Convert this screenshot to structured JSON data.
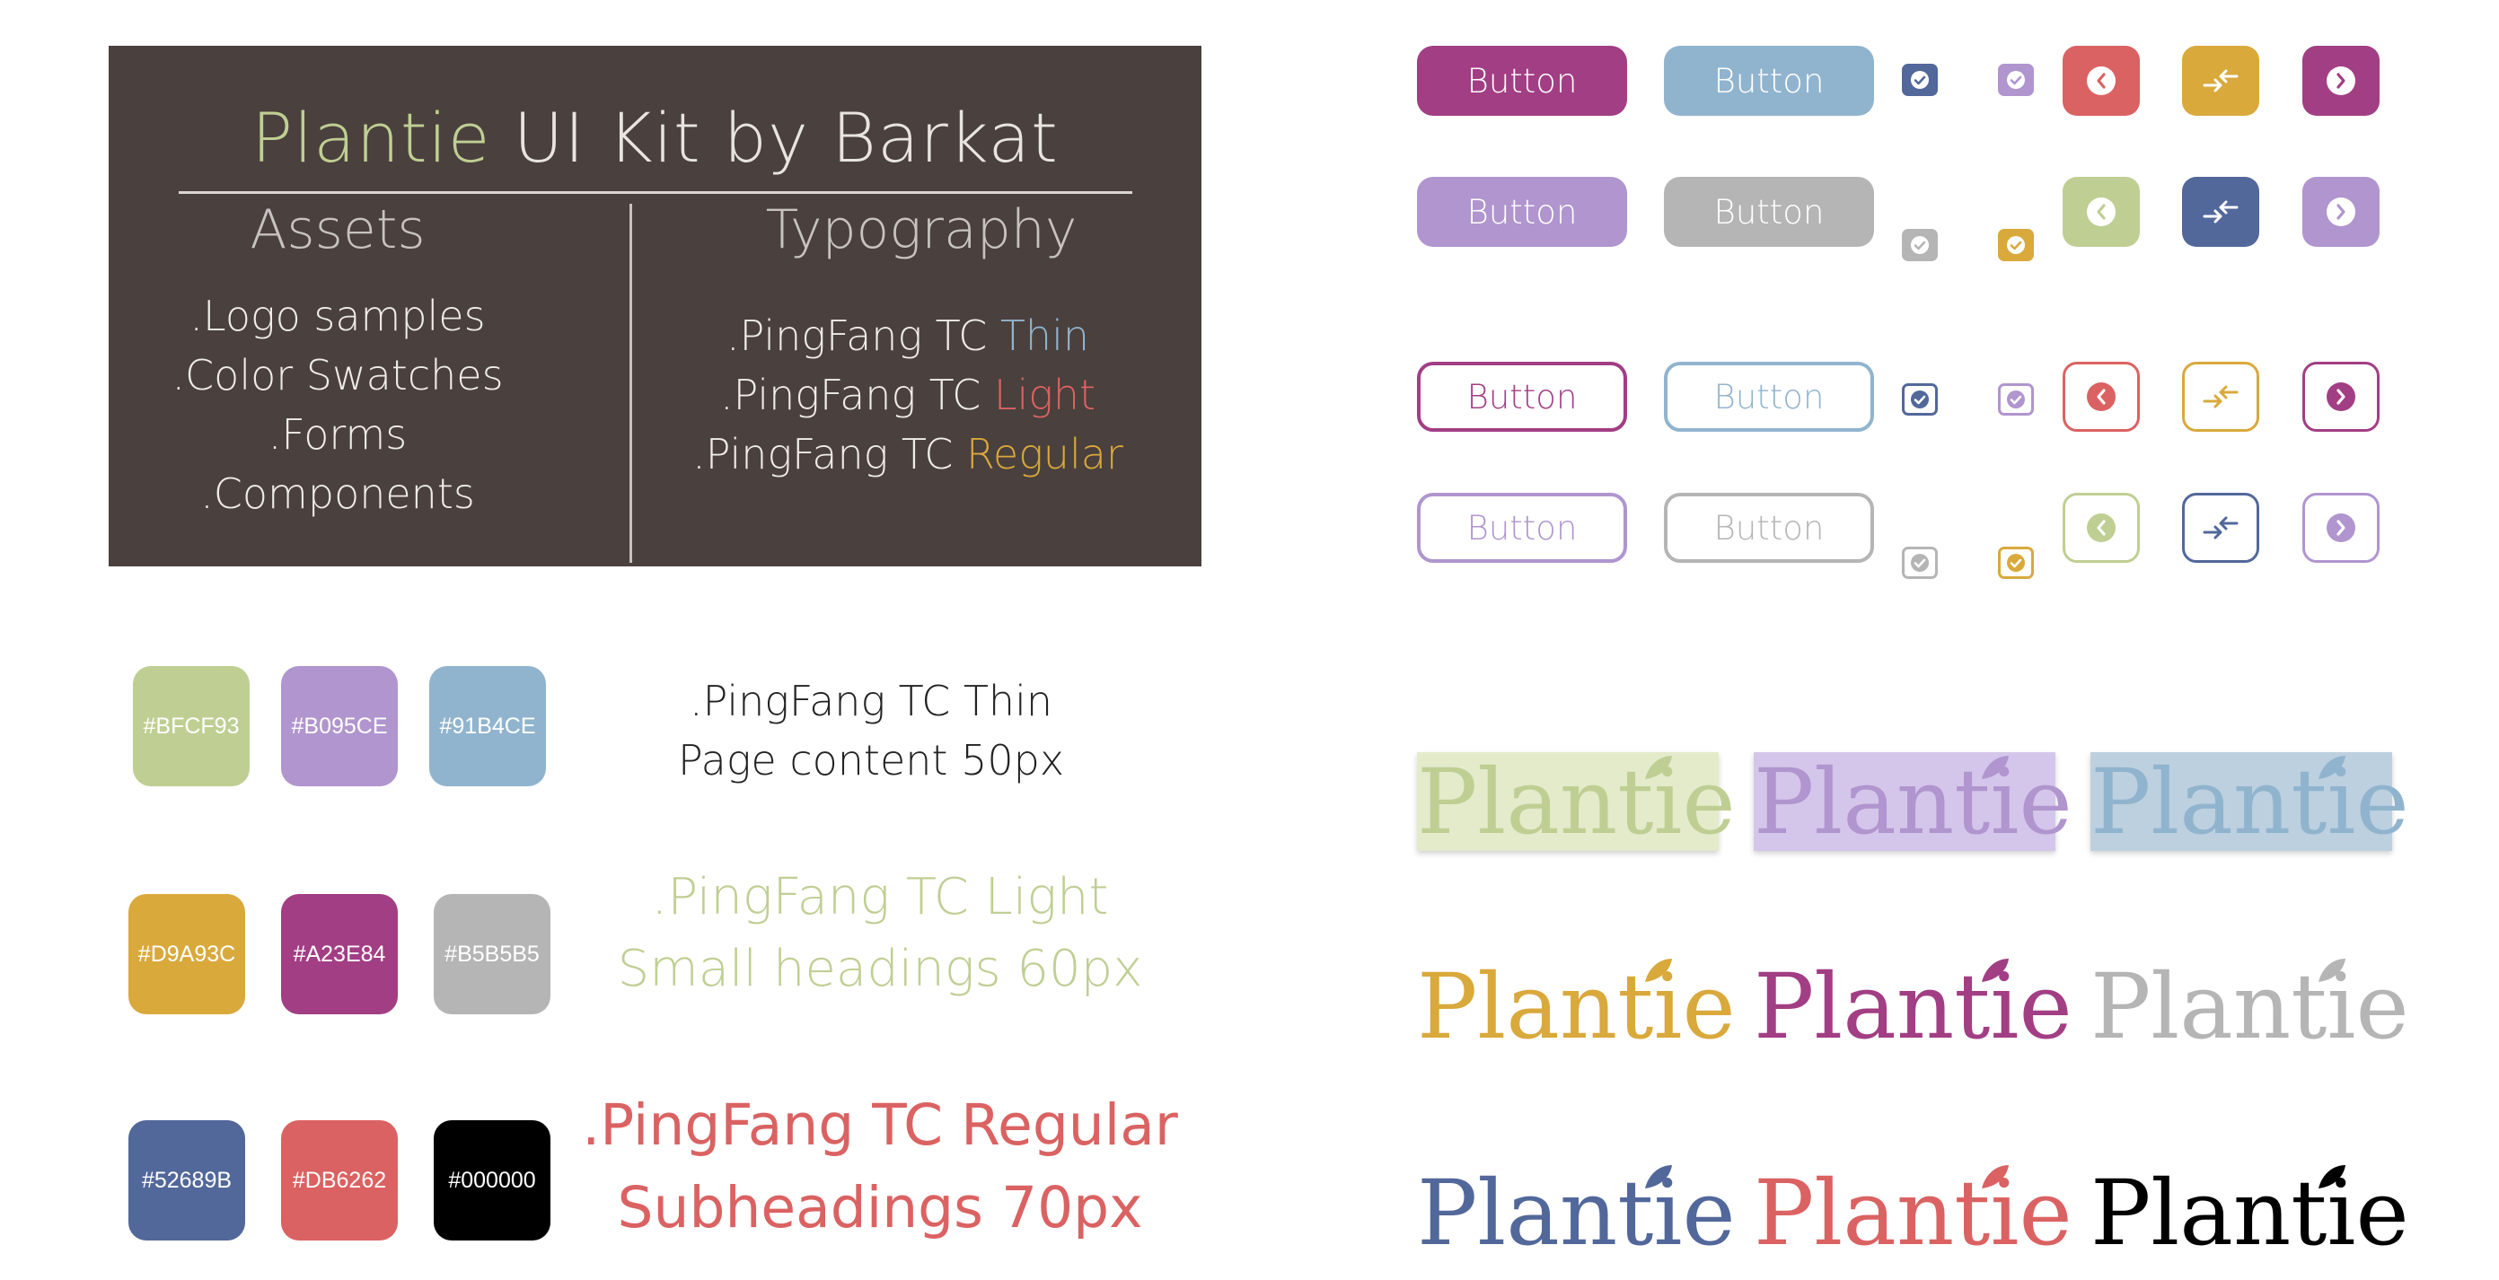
{
  "card": {
    "title_brand": "Plantie",
    "title_rest": " UI Kit by Barkat",
    "assets_heading": "Assets",
    "assets_items": [
      ".Logo samples",
      ".Color Swatches",
      ".Forms",
      ".Components"
    ],
    "typography_heading": "Typography",
    "typography_items": [
      {
        "prefix": ".PingFang TC ",
        "weight": "Thin",
        "color": "#91B4CE"
      },
      {
        "prefix": ".PingFang TC ",
        "weight": "Light",
        "color": "#DB6262"
      },
      {
        "prefix": ".PingFang TC ",
        "weight": "Regular",
        "color": "#D9A93C"
      }
    ],
    "brand_color": "#BFCF93"
  },
  "swatches": [
    {
      "label": "#BFCF93",
      "color": "#BFCF93"
    },
    {
      "label": "#B095CE",
      "color": "#B095CE"
    },
    {
      "label": "#91B4CE",
      "color": "#91B4CE"
    },
    {
      "label": "#D9A93C",
      "color": "#D9A93C"
    },
    {
      "label": "#A23E84",
      "color": "#A23E84"
    },
    {
      "label": "#B5B5B5",
      "color": "#B5B5B5"
    },
    {
      "label": "#52689B",
      "color": "#52689B"
    },
    {
      "label": "#DB6262",
      "color": "#DB6262"
    },
    {
      "label": "#000000",
      "color": "#000000"
    }
  ],
  "type_specs": [
    {
      "line1": ".PingFang TC Thin",
      "line2": "Page content 50px",
      "color": "#222222"
    },
    {
      "line1": ".PingFang TC Light",
      "line2": "Small headings 60px",
      "color": "#BFCF93"
    },
    {
      "line1": ".PingFang TC Regular",
      "line2": "Subheadings 70px",
      "color": "#DB6262"
    }
  ],
  "buttons": {
    "label": "Button",
    "rows": [
      {
        "style": "filled",
        "colors": [
          "#A23E84",
          "#91B4CE"
        ],
        "check_colors": [
          "#52689B",
          "#B095CE"
        ],
        "icons": [
          {
            "name": "chevron-left-icon",
            "color": "#DB6262"
          },
          {
            "name": "swap-arrows-icon",
            "color": "#D9A93C"
          },
          {
            "name": "chevron-right-icon",
            "color": "#A23E84"
          }
        ]
      },
      {
        "style": "filled",
        "colors": [
          "#B095CE",
          "#B5B5B5"
        ],
        "check_colors": [
          "#B5B5B5",
          "#D9A93C"
        ],
        "icons": [
          {
            "name": "chevron-left-icon",
            "color": "#BFCF93"
          },
          {
            "name": "swap-arrows-icon",
            "color": "#52689B"
          },
          {
            "name": "chevron-right-icon",
            "color": "#B095CE"
          }
        ]
      },
      {
        "style": "outline",
        "colors": [
          "#A23E84",
          "#91B4CE"
        ],
        "check_colors": [
          "#52689B",
          "#B095CE"
        ],
        "icons": [
          {
            "name": "chevron-left-icon",
            "color": "#DB6262"
          },
          {
            "name": "swap-arrows-icon",
            "color": "#D9A93C"
          },
          {
            "name": "chevron-right-icon",
            "color": "#A23E84"
          }
        ]
      },
      {
        "style": "outline",
        "colors": [
          "#B095CE",
          "#B5B5B5"
        ],
        "check_colors": [
          "#B5B5B5",
          "#D9A93C"
        ],
        "icons": [
          {
            "name": "chevron-left-icon",
            "color": "#BFCF93"
          },
          {
            "name": "swap-arrows-icon",
            "color": "#52689B"
          },
          {
            "name": "chevron-right-icon",
            "color": "#B095CE"
          }
        ]
      }
    ]
  },
  "logos": {
    "text": "Plantie",
    "boxed": [
      {
        "text_color": "#BFCF93",
        "bg": "#E3EBCB"
      },
      {
        "text_color": "#B095CE",
        "bg": "#D4C6EA"
      },
      {
        "text_color": "#91B4CE",
        "bg": "#BCD0E0"
      }
    ],
    "plain": [
      "#D9A93C",
      "#A23E84",
      "#B5B5B5",
      "#52689B",
      "#DB6262",
      "#000000"
    ]
  }
}
